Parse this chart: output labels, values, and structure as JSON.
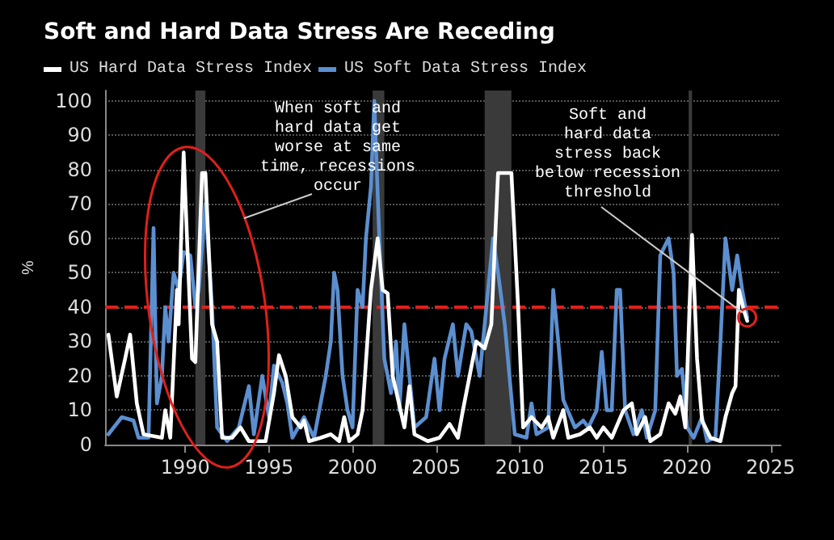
{
  "chart_data": {
    "type": "line",
    "title": "Soft and Hard Data Stress Are Receding",
    "ylabel": "%",
    "xlim": [
      1985.2,
      2025.6
    ],
    "xticks": [
      1990,
      1995,
      2000,
      2005,
      2010,
      2015,
      2020,
      2025
    ],
    "ylim": [
      0,
      103
    ],
    "yticks": [
      0,
      10,
      20,
      30,
      40,
      50,
      60,
      70,
      80,
      90,
      100
    ],
    "grid": "y",
    "legend": "top left",
    "marker": "none",
    "line_style": "solid",
    "series": [
      {
        "name": "US Hard Data Stress Index",
        "color": "#ffffff",
        "x": [
          1985.4,
          1985.9,
          1986.4,
          1986.7,
          1987.1,
          1987.5,
          1988.6,
          1988.8,
          1989.1,
          1989.5,
          1989.6,
          1989.9,
          1990.1,
          1990.4,
          1990.6,
          1991.0,
          1991.2,
          1991.6,
          1991.9,
          1992.2,
          1992.8,
          1993.3,
          1993.8,
          1994.8,
          1995.3,
          1995.6,
          1996.0,
          1996.4,
          1996.9,
          1997.1,
          1997.4,
          1998.1,
          1998.7,
          1999.2,
          1999.5,
          1999.8,
          2000.3,
          2000.6,
          2001.1,
          2001.5,
          2001.8,
          2002.1,
          2002.4,
          2003.1,
          2003.4,
          2003.7,
          2004.5,
          2005.2,
          2005.8,
          2006.3,
          2006.6,
          2007.0,
          2007.4,
          2007.9,
          2008.3,
          2008.7,
          2009.5,
          2009.9,
          2010.2,
          2010.7,
          2011.3,
          2011.7,
          2012.0,
          2012.6,
          2012.9,
          2013.6,
          2014.2,
          2014.6,
          2015.0,
          2015.5,
          2016.2,
          2016.7,
          2017.0,
          2017.5,
          2017.8,
          2018.4,
          2018.9,
          2019.3,
          2019.6,
          2019.9,
          2020.3,
          2020.6,
          2020.9,
          2021.4,
          2022.0,
          2022.3,
          2022.7,
          2022.9,
          2023.1,
          2023.4,
          2023.6
        ],
        "values": [
          32,
          14,
          25,
          32,
          12,
          3,
          2,
          10,
          2,
          45,
          35,
          85,
          60,
          25,
          24,
          79,
          79,
          35,
          30,
          2,
          2,
          5,
          1,
          1,
          15,
          26,
          20,
          8,
          5,
          7,
          1,
          2,
          3,
          1,
          8,
          1,
          3,
          10,
          45,
          60,
          45,
          44,
          20,
          5,
          17,
          3,
          1,
          2,
          6,
          2,
          10,
          20,
          30,
          28,
          35,
          79,
          79,
          40,
          5,
          8,
          5,
          8,
          2,
          10,
          2,
          3,
          5,
          2,
          5,
          2,
          10,
          12,
          3,
          8,
          1,
          3,
          12,
          9,
          14,
          5,
          61,
          25,
          7,
          2,
          1,
          8,
          15,
          17,
          45,
          39,
          36
        ]
      },
      {
        "name": "US Soft Data Stress Index",
        "color": "#5b8fd0",
        "x": [
          1985.4,
          1986.2,
          1986.9,
          1987.2,
          1987.8,
          1988.1,
          1988.3,
          1988.6,
          1988.8,
          1989.0,
          1989.3,
          1989.6,
          1989.9,
          1990.3,
          1990.6,
          1990.8,
          1991.2,
          1991.6,
          1991.9,
          1992.5,
          1993.2,
          1993.8,
          1994.1,
          1994.6,
          1995.0,
          1995.3,
          1995.8,
          1996.1,
          1996.4,
          1997.1,
          1997.7,
          1998.4,
          1998.7,
          1998.9,
          1999.1,
          1999.4,
          1999.7,
          2000.0,
          2000.3,
          2000.6,
          2000.8,
          2001.1,
          2001.3,
          2001.6,
          2001.9,
          2002.3,
          2002.6,
          2002.8,
          2003.1,
          2003.4,
          2003.7,
          2004.4,
          2004.9,
          2005.2,
          2005.5,
          2006.0,
          2006.3,
          2006.8,
          2007.1,
          2007.6,
          2008.1,
          2008.4,
          2008.7,
          2009.1,
          2009.7,
          2010.4,
          2010.7,
          2011.0,
          2011.7,
          2012.0,
          2012.3,
          2012.6,
          2013.3,
          2013.8,
          2014.1,
          2014.6,
          2014.9,
          2015.2,
          2015.5,
          2015.8,
          2016.0,
          2016.3,
          2016.8,
          2017.3,
          2017.6,
          2018.1,
          2018.4,
          2018.9,
          2019.2,
          2019.4,
          2019.7,
          2020.0,
          2020.4,
          2020.9,
          2021.2,
          2021.7,
          2022.0,
          2022.3,
          2022.7,
          2023.0,
          2023.3,
          2023.6
        ],
        "values": [
          3,
          8,
          7,
          2,
          2,
          63,
          12,
          20,
          40,
          30,
          50,
          45,
          56,
          55,
          40,
          45,
          70,
          40,
          5,
          1,
          5,
          17,
          3,
          20,
          8,
          23,
          18,
          12,
          2,
          8,
          2,
          20,
          30,
          50,
          45,
          20,
          10,
          5,
          45,
          40,
          60,
          75,
          100,
          60,
          25,
          15,
          30,
          10,
          35,
          20,
          5,
          8,
          25,
          10,
          25,
          35,
          20,
          35,
          33,
          20,
          45,
          60,
          50,
          35,
          3,
          2,
          12,
          3,
          5,
          45,
          30,
          13,
          5,
          7,
          5,
          10,
          27,
          10,
          10,
          45,
          45,
          10,
          3,
          10,
          2,
          10,
          55,
          60,
          50,
          20,
          22,
          5,
          2,
          8,
          1,
          2,
          30,
          60,
          45,
          55,
          45,
          37
        ]
      }
    ],
    "ref_lines": [
      {
        "axis": "y",
        "value": 40,
        "color": "#e0201b",
        "line_style": "dashed"
      }
    ],
    "bands": [
      {
        "axis": "x",
        "from": 1990.6,
        "to": 1991.2,
        "color": "#3a3a3a"
      },
      {
        "axis": "x",
        "from": 2001.2,
        "to": 2001.9,
        "color": "#3a3a3a"
      },
      {
        "axis": "x",
        "from": 2007.9,
        "to": 2009.5,
        "color": "#3a3a3a"
      },
      {
        "axis": "x",
        "from": 2020.1,
        "to": 2020.3,
        "color": "#3a3a3a"
      }
    ],
    "annotations": [
      "When soft and\nhard data get\nworse at same\ntime, recessions\noccur",
      {
        "text": "Soft and\nhard data\nstress back\nbelow recession\nthreshold",
        "x": 2023.6,
        "y": 37
      }
    ]
  }
}
